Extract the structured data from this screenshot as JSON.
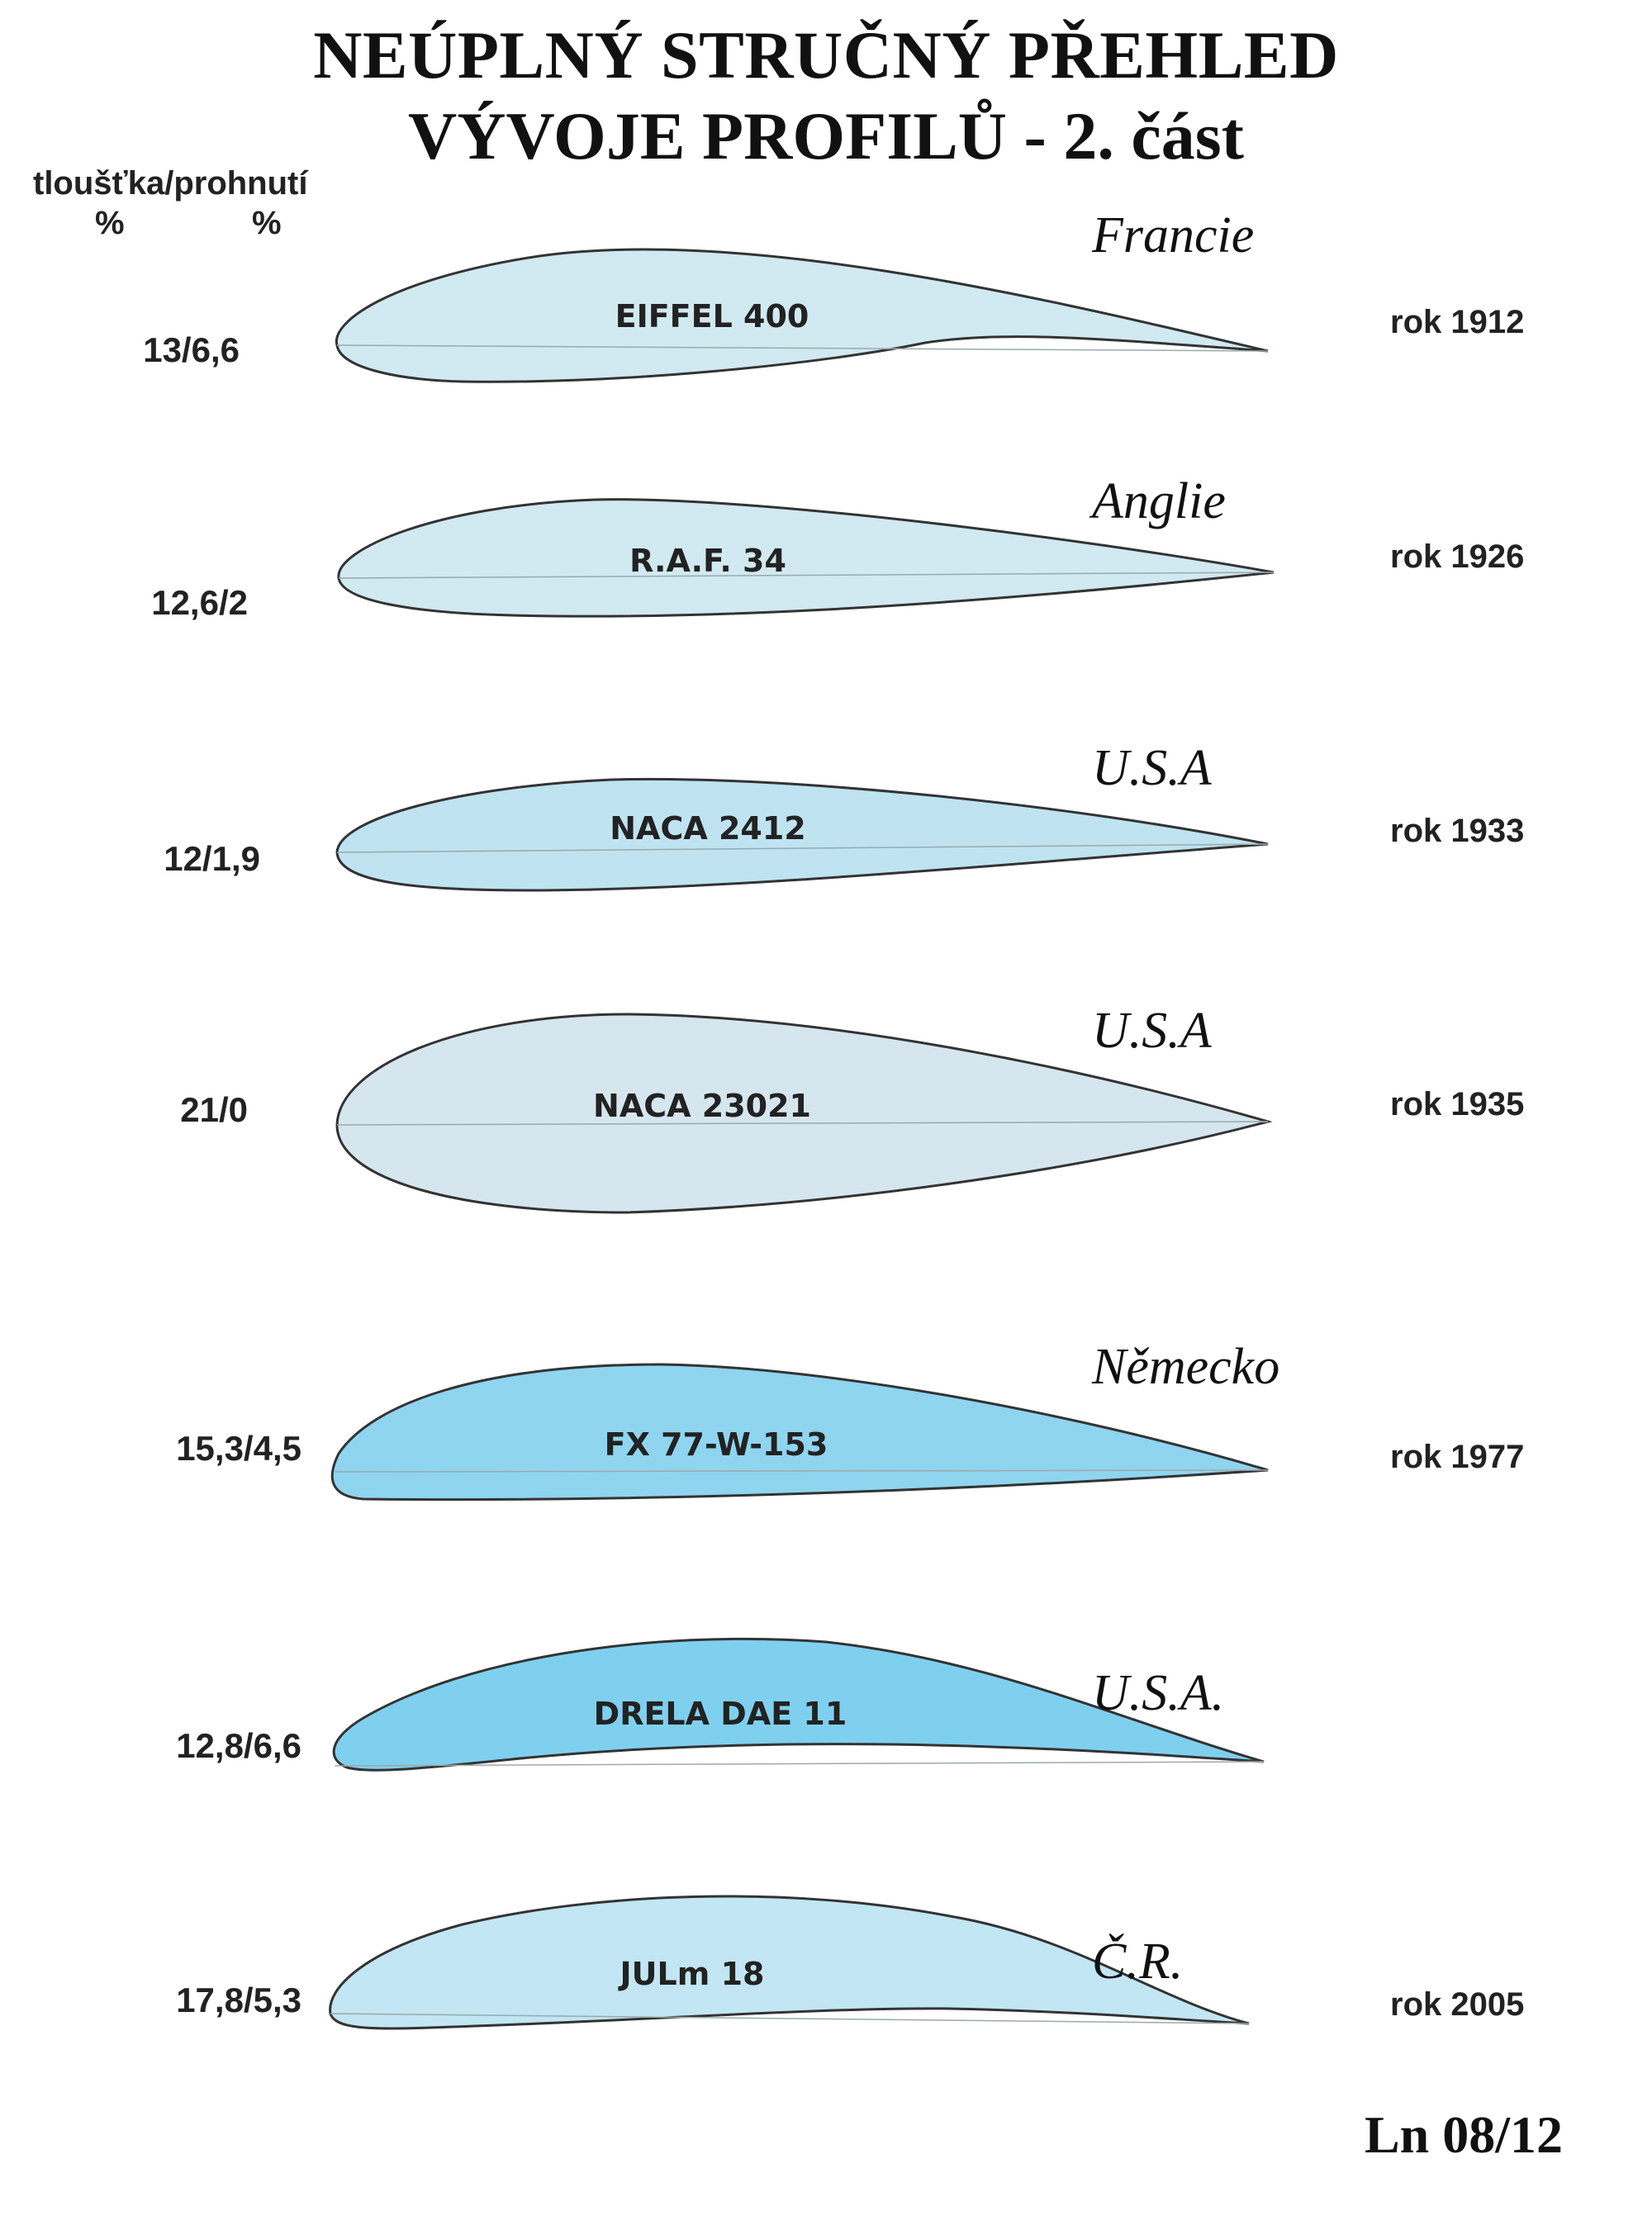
{
  "title_line1": "NEÚPLNÝ STRUČNÝ PŘEHLED",
  "title_line2": "VÝVOJE PROFILŮ - 2. část",
  "header": {
    "col_label": "tloušťka/prohnutí",
    "unit_left": "%",
    "unit_right": "%"
  },
  "profiles": [
    {
      "name": "EIFFEL  400",
      "values": "13/6,6",
      "country": "Francie",
      "year": "rok  1912",
      "fill": "#d1e9f1"
    },
    {
      "name": "R.A.F.  34",
      "values": "12,6/2",
      "country": "Anglie",
      "year": "rok  1926",
      "fill": "#d1e9f1"
    },
    {
      "name": "NACA  2412",
      "values": "12/1,9",
      "country": "U.S.A",
      "year": "rok  1933",
      "fill": "#bfe3f1"
    },
    {
      "name": "NACA  23021",
      "values": "21/0",
      "country": "U.S.A",
      "year": "rok  1935",
      "fill": "#d6e6ef"
    },
    {
      "name": "FX 77-W-153",
      "values": "15,3/4,5",
      "country": "Německo",
      "year": "rok  1977",
      "fill": "#8fd5f0"
    },
    {
      "name": "DRELA DAE  11",
      "values": "12,8/6,6",
      "country": "U.S.A.",
      "year": "",
      "fill": "#7fd0ef"
    },
    {
      "name": "JULm  18",
      "values": "17,8/5,3",
      "country": "Č.R.",
      "year": "rok  2005",
      "fill": "#c2e6f3"
    }
  ],
  "footer": "Ln 08/12"
}
